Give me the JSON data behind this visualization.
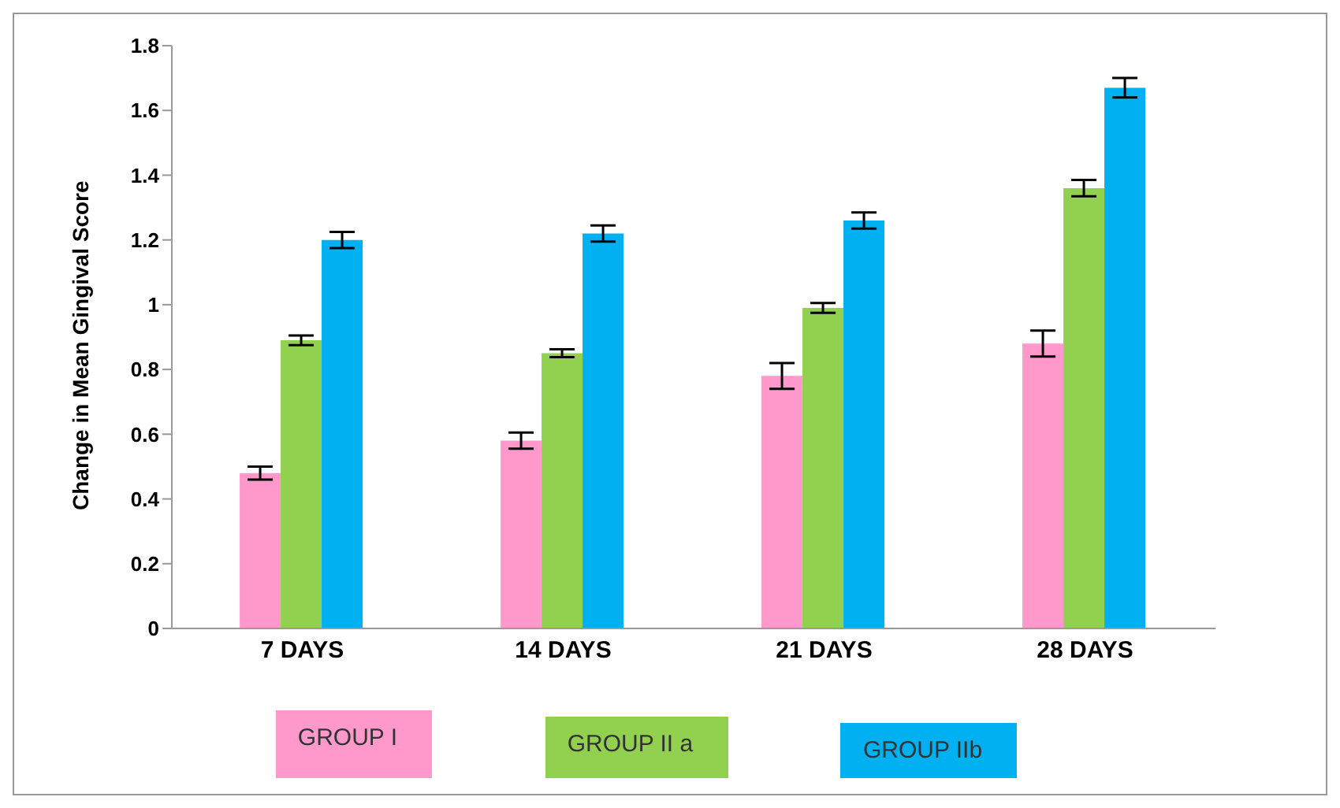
{
  "chart_data": {
    "type": "bar",
    "ylabel": "Change in Mean Gingival Score",
    "categories": [
      "7 DAYS",
      "14 DAYS",
      "21 DAYS",
      "28 DAYS"
    ],
    "series": [
      {
        "name": "GROUP I",
        "color": "#ff99cc",
        "values": [
          0.48,
          0.58,
          0.78,
          0.88
        ],
        "errors": [
          0.02,
          0.025,
          0.04,
          0.04
        ]
      },
      {
        "name": "GROUP II a",
        "color": "#92d050",
        "values": [
          0.89,
          0.85,
          0.99,
          1.36
        ],
        "errors": [
          0.015,
          0.012,
          0.015,
          0.025
        ]
      },
      {
        "name": "GROUP IIb",
        "color": "#00b0f0",
        "values": [
          1.2,
          1.22,
          1.26,
          1.67
        ],
        "errors": [
          0.025,
          0.025,
          0.025,
          0.03
        ]
      }
    ],
    "ylim": [
      0,
      1.8
    ],
    "yticks": [
      0,
      0.2,
      0.4,
      0.6,
      0.8,
      1,
      1.2,
      1.4,
      1.6,
      1.8
    ],
    "grid": false,
    "legend": "bottom"
  }
}
